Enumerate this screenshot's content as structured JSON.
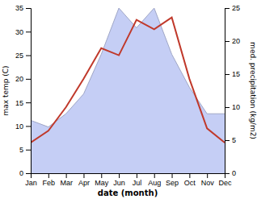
{
  "chart_data": {
    "type": "line",
    "xlabel": "date (month)",
    "ylabel": "max temp (C)",
    "y2label": "med. precipitation (kg/m2)",
    "categories": [
      "Jan",
      "Feb",
      "Mar",
      "Apr",
      "May",
      "Jun",
      "Jul",
      "Aug",
      "Sep",
      "Oct",
      "Nov",
      "Dec"
    ],
    "series": [
      {
        "type": "area",
        "axis": "y2",
        "color": "#c5cef5",
        "values": [
          8.0,
          7.0,
          9.0,
          12.0,
          18.0,
          25.0,
          22.0,
          25.0,
          18.0,
          13.0,
          9.0,
          9.0
        ]
      },
      {
        "type": "line",
        "color": "#c0392b",
        "values": [
          6.5,
          9.0,
          14.0,
          20.0,
          26.5,
          25.0,
          32.5,
          30.5,
          33.0,
          20.0,
          9.5,
          6.5
        ]
      }
    ],
    "ylim": [
      0,
      35
    ],
    "yticks": [
      0,
      5,
      10,
      15,
      20,
      25,
      30,
      35
    ],
    "y2lim": [
      0,
      25
    ],
    "y2ticks": [
      0,
      5,
      10,
      15,
      20,
      25
    ],
    "grid": false
  }
}
